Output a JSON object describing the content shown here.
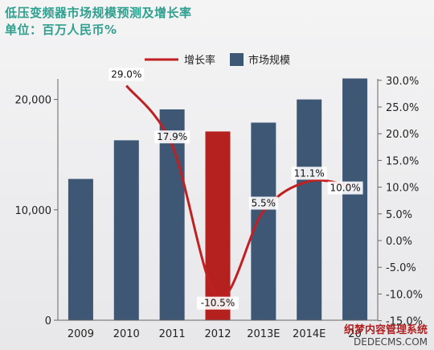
{
  "chart_data": {
    "type": "bar",
    "title": "低压变频器市场规模预测及增长率",
    "subtitle": "单位：百万人民币%",
    "categories": [
      "2009",
      "2010",
      "2011",
      "2012",
      "2013E",
      "2014E",
      "2015E"
    ],
    "category_labels": [
      "2009",
      "2010",
      "2011",
      "2012",
      "2013E",
      "2014E",
      "20"
    ],
    "series": [
      {
        "name": "市场规模",
        "type": "bar",
        "axis": "left",
        "color": "#3d5775",
        "highlight_color": "#b5211f",
        "highlight_index": 3,
        "values": [
          12800,
          16300,
          19100,
          17100,
          17900,
          20000,
          21900
        ]
      },
      {
        "name": "增长率",
        "type": "line",
        "axis": "right",
        "color": "#c02022",
        "values": [
          null,
          29.0,
          17.9,
          -10.5,
          5.5,
          11.1,
          10.0
        ],
        "labels": [
          "",
          "29.0%",
          "17.9%",
          "-10.5%",
          "5.5%",
          "11.1%",
          "10.0%"
        ]
      }
    ],
    "y_left": {
      "min": 0,
      "max": 20000,
      "ticks": [
        0,
        10000,
        20000
      ],
      "tick_labels": [
        "0",
        "10,000",
        "20,000"
      ]
    },
    "y_right": {
      "min": -15,
      "max": 30,
      "ticks": [
        -15,
        -10,
        -5,
        0,
        5,
        10,
        15,
        20,
        25,
        30
      ],
      "tick_labels": [
        "-15.0%",
        "-10.0%",
        "-5.0%",
        "0.0%",
        "5.0%",
        "10.0%",
        "15.0%",
        "20.0%",
        "25.0%",
        "30.0%"
      ]
    },
    "legend": {
      "placement": "top-right",
      "items": [
        "增长率",
        "市场规模"
      ]
    },
    "grid": false
  },
  "watermark": {
    "line1": "织梦内容管理系统",
    "line2": "DEDECMS.COM"
  },
  "colors": {
    "title": "#2f9f8e",
    "bar": "#3d5775",
    "highlight_bar": "#b5211f",
    "line": "#c02022"
  }
}
